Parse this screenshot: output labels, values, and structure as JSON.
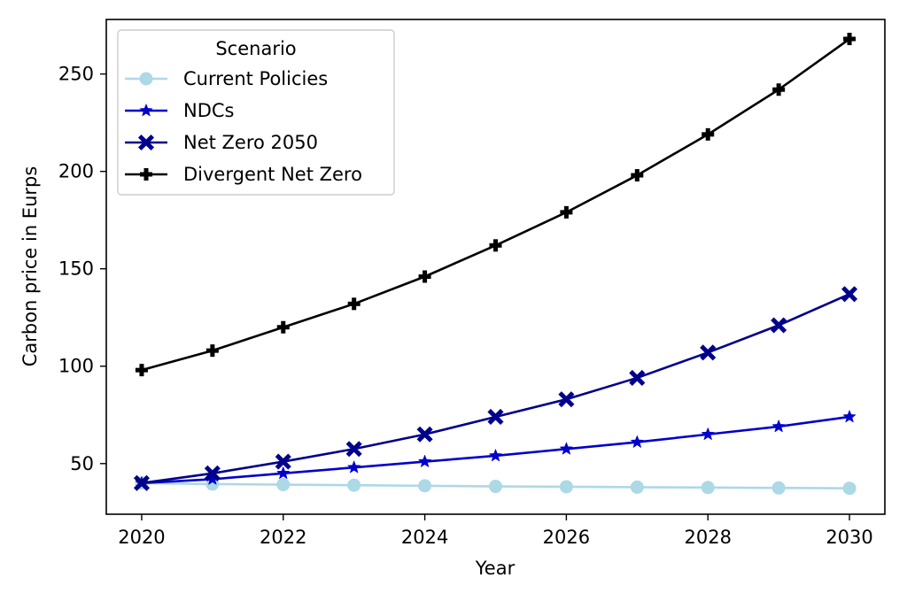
{
  "chart_data": {
    "type": "line",
    "xlabel": "Year",
    "ylabel": "Carbon price in Eurps",
    "x": [
      2020,
      2021,
      2022,
      2023,
      2024,
      2025,
      2026,
      2027,
      2028,
      2029,
      2030
    ],
    "xticks": [
      2020,
      2022,
      2024,
      2026,
      2028,
      2030
    ],
    "yticks": [
      50,
      100,
      150,
      200,
      250
    ],
    "xlim": [
      2019.5,
      2030.5
    ],
    "ylim": [
      24,
      278
    ],
    "grid": false,
    "legend": {
      "title": "Scenario",
      "position": "top-left"
    },
    "series": [
      {
        "name": "Current Policies",
        "color": "#add8e6",
        "marker": "circle",
        "values": [
          40,
          39.5,
          39.2,
          38.9,
          38.6,
          38.3,
          38.1,
          37.9,
          37.7,
          37.5,
          37.3
        ]
      },
      {
        "name": "NDCs",
        "color": "#0000cd",
        "marker": "star",
        "values": [
          40,
          42,
          45,
          48,
          51,
          54,
          57.5,
          61,
          65,
          69,
          74
        ]
      },
      {
        "name": "Net Zero 2050",
        "color": "#00008b",
        "marker": "x-filled",
        "values": [
          40,
          45,
          51,
          57.5,
          65,
          74,
          83,
          94,
          107,
          121,
          137
        ]
      },
      {
        "name": "Divergent Net Zero",
        "color": "#000000",
        "marker": "plus-filled",
        "values": [
          98,
          108,
          120,
          132,
          146,
          162,
          179,
          198,
          219,
          242,
          268
        ]
      }
    ]
  }
}
